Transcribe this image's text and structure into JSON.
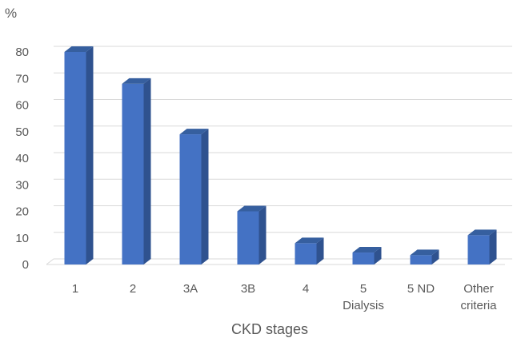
{
  "chart_data": {
    "type": "bar",
    "title": "",
    "ylabel": "%",
    "xlabel": "CKD stages",
    "categories": [
      [
        "1"
      ],
      [
        "2"
      ],
      [
        "3A"
      ],
      [
        "3B"
      ],
      [
        "4"
      ],
      [
        "5",
        "Dialysis"
      ],
      [
        "5 ND"
      ],
      [
        "Other",
        "criteria"
      ]
    ],
    "values": [
      80,
      68,
      49,
      20,
      8,
      4.5,
      3.5,
      11
    ],
    "ylim": [
      0,
      80
    ],
    "yticks": [
      "0",
      "10",
      "20",
      "30",
      "40",
      "50",
      "60",
      "70",
      "80"
    ],
    "grid": true,
    "legend": "none",
    "colors": {
      "bar_front": "#4472c4",
      "bar_side": "#2f528f",
      "bar_top": "#365f9f",
      "grid": "#d9d9d9",
      "text": "#595959"
    }
  }
}
